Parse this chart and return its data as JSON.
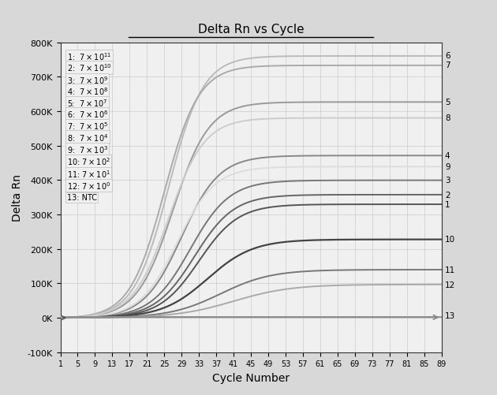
{
  "title": "Delta Rn vs Cycle",
  "xlabel": "Cycle Number",
  "ylabel": "Delta Rn",
  "xlim": [
    1,
    89
  ],
  "ylim": [
    -100000,
    800000
  ],
  "yticks": [
    -100000,
    0,
    100000,
    200000,
    300000,
    400000,
    500000,
    600000,
    700000,
    800000
  ],
  "ytick_labels": [
    "-100K",
    "0K",
    "100K",
    "200K",
    "300K",
    "400K",
    "500K",
    "600K",
    "700K",
    "800K"
  ],
  "xtick_labels": [
    "1",
    "5",
    "9",
    "13",
    "17",
    "21",
    "25",
    "29",
    "33",
    "37",
    "41",
    "45",
    "49",
    "53",
    "57",
    "61",
    "65",
    "69",
    "73",
    "77",
    "81",
    "85",
    "89"
  ],
  "xtick_positions": [
    1,
    5,
    9,
    13,
    17,
    21,
    25,
    29,
    33,
    37,
    41,
    45,
    49,
    53,
    57,
    61,
    65,
    69,
    73,
    77,
    81,
    85,
    89
  ],
  "background_color": "#d8d8d8",
  "plot_bg_color": "#f0f0f0",
  "legend_items": [
    [
      "1:  $7\\times10^{11}$",
      760000
    ],
    [
      "2:  $7\\times10^{10}$",
      728000
    ],
    [
      "3:  $7\\times10^{9}$",
      692000
    ],
    [
      "4:  $7\\times10^{8}$",
      660000
    ],
    [
      "5:  $7\\times10^{7}$",
      625000
    ],
    [
      "6:  $7\\times10^{6}$",
      593000
    ],
    [
      "7:  $7\\times10^{5}$",
      558000
    ],
    [
      "8:  $7\\times10^{4}$",
      525000
    ],
    [
      "9:  $7\\times10^{3}$",
      490000
    ],
    [
      "10: $7\\times10^{2}$",
      455000
    ],
    [
      "11: $7\\times10^{1}$",
      418000
    ],
    [
      "12: $7\\times10^{0}$",
      385000
    ],
    [
      "13: NTC",
      350000
    ]
  ],
  "curves": [
    {
      "label": 6,
      "plateau": 762000,
      "midpoint": 26,
      "slope": 0.25,
      "color": "#bbbbbb",
      "lw": 1.4,
      "right_y": 762000
    },
    {
      "label": 7,
      "plateau": 735000,
      "midpoint": 25,
      "slope": 0.25,
      "color": "#aaaaaa",
      "lw": 1.4,
      "right_y": 735000
    },
    {
      "label": 5,
      "plateau": 628000,
      "midpoint": 27,
      "slope": 0.24,
      "color": "#999999",
      "lw": 1.4,
      "right_y": 628000
    },
    {
      "label": 8,
      "plateau": 582000,
      "midpoint": 26,
      "slope": 0.24,
      "color": "#cccccc",
      "lw": 1.4,
      "right_y": 582000
    },
    {
      "label": 4,
      "plateau": 472000,
      "midpoint": 29,
      "slope": 0.23,
      "color": "#888888",
      "lw": 1.4,
      "right_y": 472000
    },
    {
      "label": 9,
      "plateau": 440000,
      "midpoint": 28,
      "slope": 0.23,
      "color": "#dddddd",
      "lw": 1.4,
      "right_y": 440000
    },
    {
      "label": 3,
      "plateau": 400000,
      "midpoint": 31,
      "slope": 0.22,
      "color": "#777777",
      "lw": 1.4,
      "right_y": 400000
    },
    {
      "label": 2,
      "plateau": 358000,
      "midpoint": 32,
      "slope": 0.22,
      "color": "#666666",
      "lw": 1.4,
      "right_y": 358000
    },
    {
      "label": 1,
      "plateau": 330000,
      "midpoint": 33,
      "slope": 0.22,
      "color": "#555555",
      "lw": 1.4,
      "right_y": 330000
    },
    {
      "label": 10,
      "plateau": 228000,
      "midpoint": 35,
      "slope": 0.19,
      "color": "#444444",
      "lw": 1.6,
      "right_y": 228000
    },
    {
      "label": 11,
      "plateau": 140000,
      "midpoint": 38,
      "slope": 0.17,
      "color": "#777777",
      "lw": 1.4,
      "right_y": 140000
    },
    {
      "label": 12,
      "plateau": 97000,
      "midpoint": 41,
      "slope": 0.15,
      "color": "#aaaaaa",
      "lw": 1.4,
      "right_y": 97000
    },
    {
      "label": 13,
      "plateau": 500,
      "midpoint": 89,
      "slope": 0.01,
      "color": "#999999",
      "lw": 1.4,
      "right_y": 8000
    }
  ]
}
